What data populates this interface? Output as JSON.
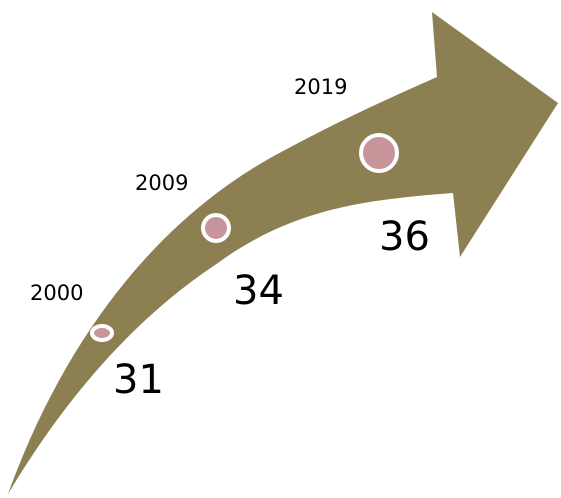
{
  "colors": {
    "arrow": "#8C8053",
    "marker_fill": "#C7959A",
    "marker_ring": "#FFFFFF",
    "text": "#000000"
  },
  "milestones": [
    {
      "year": "2000",
      "value": "31"
    },
    {
      "year": "2009",
      "value": "34"
    },
    {
      "year": "2019",
      "value": "36"
    }
  ]
}
